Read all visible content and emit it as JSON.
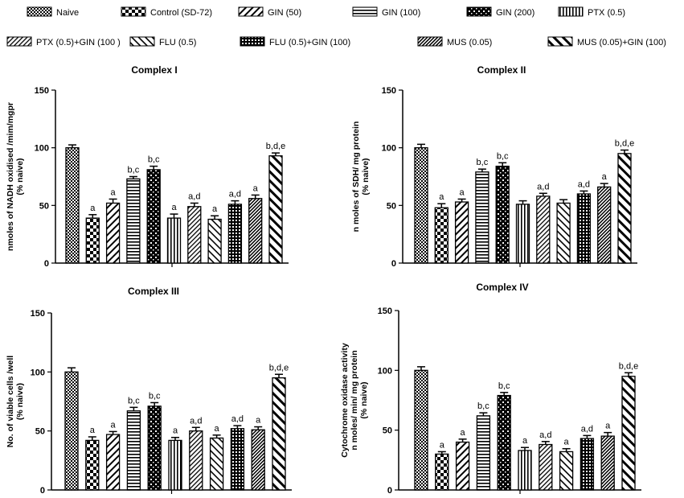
{
  "legend": [
    {
      "label": "Naive",
      "pattern": "checker"
    },
    {
      "label": "Control (SD-72)",
      "pattern": "bigchecker"
    },
    {
      "label": "GIN (50)",
      "pattern": "diag"
    },
    {
      "label": "GIN (100)",
      "pattern": "hstripe"
    },
    {
      "label": "GIN (200)",
      "pattern": "bigchecker2"
    },
    {
      "label": "PTX (0.5)",
      "pattern": "vstripe"
    },
    {
      "label": "PTX (0.5)+GIN (100 )",
      "pattern": "diagfine"
    },
    {
      "label": "FLU (0.5)",
      "pattern": "back"
    },
    {
      "label": "FLU (0.5)+GIN (100)",
      "pattern": "grid"
    },
    {
      "label": "MUS (0.05)",
      "pattern": "dense"
    },
    {
      "label": "MUS (0.05)+GIN (100)",
      "pattern": "backwide"
    }
  ],
  "chart_data": [
    {
      "type": "bar",
      "title": "Complex I",
      "ylabel": [
        "nmoles of NADH oxidised /mim/mgpr",
        "(% naive)"
      ],
      "ylim": [
        0,
        150
      ],
      "yticks": [
        0,
        50,
        100,
        150
      ],
      "series_names": [
        "Naive",
        "Control (SD-72)",
        "GIN (50)",
        "GIN (100)",
        "GIN (200)",
        "PTX (0.5)",
        "PTX (0.5)+GIN (100 )",
        "FLU (0.5)",
        "FLU (0.5)+GIN (100)",
        "MUS (0.05)",
        "MUS (0.05)+GIN (100)"
      ],
      "values": [
        100,
        39,
        52,
        73,
        81,
        39,
        49,
        38,
        51,
        56,
        93
      ],
      "errors": [
        2.5,
        3,
        3.5,
        2,
        3,
        3.5,
        3,
        3,
        3,
        3,
        2.5
      ],
      "labels": [
        "",
        "a",
        "a",
        "b,c",
        "b,c",
        "a",
        "a,d",
        "a",
        "a,d",
        "a",
        "b,d,e"
      ]
    },
    {
      "type": "bar",
      "title": "Complex II",
      "ylabel": [
        "n moles of SDH/ mg protein",
        "(% naive)"
      ],
      "ylim": [
        0,
        150
      ],
      "yticks": [
        0,
        50,
        100,
        150
      ],
      "series_names": [
        "Naive",
        "Control (SD-72)",
        "GIN (50)",
        "GIN (100)",
        "GIN (200)",
        "PTX (0.5)",
        "PTX (0.5)+GIN (100 )",
        "FLU (0.5)",
        "FLU (0.5)+GIN (100)",
        "MUS (0.05)",
        "MUS (0.05)+GIN (100)"
      ],
      "values": [
        100,
        48,
        53,
        79,
        84,
        51,
        58,
        52,
        60,
        66,
        95
      ],
      "errors": [
        3,
        3.5,
        2.5,
        2.5,
        3,
        3,
        2.5,
        3,
        2.5,
        3,
        3
      ],
      "labels": [
        "",
        "a",
        "a",
        "b,c",
        "b,c",
        "",
        "a,d",
        "",
        "a,d",
        "a",
        "b,d,e"
      ]
    },
    {
      "type": "bar",
      "title": "Complex III",
      "ylabel": [
        "No. of viable cells /well",
        "(% naive)"
      ],
      "ylim": [
        0,
        150
      ],
      "yticks": [
        0,
        50,
        100,
        150
      ],
      "series_names": [
        "Naive",
        "Control (SD-72)",
        "GIN (50)",
        "GIN (100)",
        "GIN (200)",
        "PTX (0.5)",
        "PTX (0.5)+GIN (100 )",
        "FLU (0.5)",
        "FLU (0.5)+GIN (100)",
        "MUS (0.05)",
        "MUS (0.05)+GIN (100)"
      ],
      "values": [
        100,
        42,
        47,
        67,
        71,
        42,
        50,
        44,
        52,
        51,
        95
      ],
      "errors": [
        3.5,
        3,
        2.5,
        3,
        3,
        2.5,
        3,
        2.5,
        2.5,
        2.5,
        3
      ],
      "labels": [
        "",
        "a",
        "a",
        "b,c",
        "b,c",
        "a",
        "a,d",
        "a",
        "a,d",
        "a",
        "b,d,e"
      ]
    },
    {
      "type": "bar",
      "title": "Complex IV",
      "ylabel": [
        "Cytochrome oxidase activity",
        "n moles/ min/ mg protein",
        "(% naive)"
      ],
      "ylim": [
        0,
        150
      ],
      "yticks": [
        0,
        50,
        100,
        150
      ],
      "series_names": [
        "Naive",
        "Control (SD-72)",
        "GIN (50)",
        "GIN (100)",
        "GIN (200)",
        "PTX (0.5)",
        "PTX (0.5)+GIN (100 )",
        "FLU (0.5)",
        "FLU (0.5)+GIN (100)",
        "MUS (0.05)",
        "MUS (0.05)+GIN (100)"
      ],
      "values": [
        100,
        30,
        40,
        62,
        79,
        33,
        38,
        32,
        43,
        45,
        95
      ],
      "errors": [
        3,
        2,
        2.5,
        2.5,
        2.5,
        2.5,
        2.5,
        2.5,
        2.5,
        3,
        3
      ],
      "labels": [
        "",
        "a",
        "a",
        "b,c",
        "b,c",
        "a",
        "a,d",
        "a",
        "a,d",
        "a",
        "b,d,e"
      ]
    }
  ]
}
